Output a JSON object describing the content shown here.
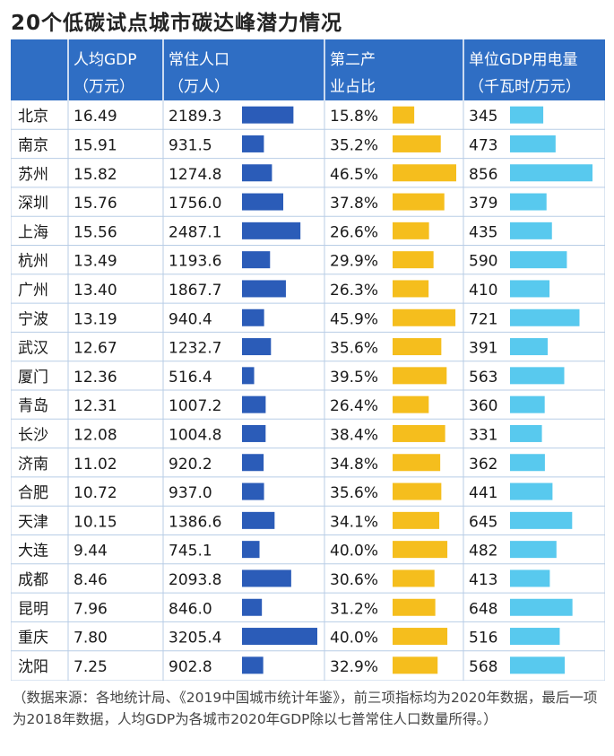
{
  "title": "20个低碳试点城市碳达峰潜力情况",
  "colors": {
    "header_bg": "#2f6ec4",
    "header_text": "#ffffff",
    "population_bar": "#2b5cb8",
    "industry_bar": "#f5be1d",
    "electricity_bar": "#58c9ee",
    "grid": "#b8cde6"
  },
  "chart_data": {
    "type": "table",
    "headers": [
      {
        "line1": "",
        "line2": ""
      },
      {
        "line1": "人均GDP",
        "line2": "（万元）"
      },
      {
        "line1": "常住人口",
        "line2": "（万人）"
      },
      {
        "line1": "第二产",
        "line2": "业占比"
      },
      {
        "line1": "单位GDP用电量",
        "line2": "（千瓦时/万元）"
      }
    ],
    "rows": [
      {
        "city": "北京",
        "gdp_per_capita": "16.49",
        "population": 2189.3,
        "population_label": "2189.3",
        "secondary_share": 15.8,
        "secondary_label": "15.8%",
        "electricity": 345,
        "electricity_label": "345"
      },
      {
        "city": "南京",
        "gdp_per_capita": "15.91",
        "population": 931.5,
        "population_label": "931.5",
        "secondary_share": 35.2,
        "secondary_label": "35.2%",
        "electricity": 473,
        "electricity_label": "473"
      },
      {
        "city": "苏州",
        "gdp_per_capita": "15.82",
        "population": 1274.8,
        "population_label": "1274.8",
        "secondary_share": 46.5,
        "secondary_label": "46.5%",
        "electricity": 856,
        "electricity_label": "856"
      },
      {
        "city": "深圳",
        "gdp_per_capita": "15.76",
        "population": 1756.0,
        "population_label": "1756.0",
        "secondary_share": 37.8,
        "secondary_label": "37.8%",
        "electricity": 379,
        "electricity_label": "379"
      },
      {
        "city": "上海",
        "gdp_per_capita": "15.56",
        "population": 2487.1,
        "population_label": "2487.1",
        "secondary_share": 26.6,
        "secondary_label": "26.6%",
        "electricity": 435,
        "electricity_label": "435"
      },
      {
        "city": "杭州",
        "gdp_per_capita": "13.49",
        "population": 1193.6,
        "population_label": "1193.6",
        "secondary_share": 29.9,
        "secondary_label": "29.9%",
        "electricity": 590,
        "electricity_label": "590"
      },
      {
        "city": "广州",
        "gdp_per_capita": "13.40",
        "population": 1867.7,
        "population_label": "1867.7",
        "secondary_share": 26.3,
        "secondary_label": "26.3%",
        "electricity": 410,
        "electricity_label": "410"
      },
      {
        "city": "宁波",
        "gdp_per_capita": "13.19",
        "population": 940.4,
        "population_label": "940.4",
        "secondary_share": 45.9,
        "secondary_label": "45.9%",
        "electricity": 721,
        "electricity_label": "721"
      },
      {
        "city": "武汉",
        "gdp_per_capita": "12.67",
        "population": 1232.7,
        "population_label": "1232.7",
        "secondary_share": 35.6,
        "secondary_label": "35.6%",
        "electricity": 391,
        "electricity_label": "391"
      },
      {
        "city": "厦门",
        "gdp_per_capita": "12.36",
        "population": 516.4,
        "population_label": "516.4",
        "secondary_share": 39.5,
        "secondary_label": "39.5%",
        "electricity": 563,
        "electricity_label": "563"
      },
      {
        "city": "青岛",
        "gdp_per_capita": "12.31",
        "population": 1007.2,
        "population_label": "1007.2",
        "secondary_share": 26.4,
        "secondary_label": "26.4%",
        "electricity": 360,
        "electricity_label": "360"
      },
      {
        "city": "长沙",
        "gdp_per_capita": "12.08",
        "population": 1004.8,
        "population_label": "1004.8",
        "secondary_share": 38.4,
        "secondary_label": "38.4%",
        "electricity": 331,
        "electricity_label": "331"
      },
      {
        "city": "济南",
        "gdp_per_capita": "11.02",
        "population": 920.2,
        "population_label": "920.2",
        "secondary_share": 34.8,
        "secondary_label": "34.8%",
        "electricity": 362,
        "electricity_label": "362"
      },
      {
        "city": "合肥",
        "gdp_per_capita": "10.72",
        "population": 937.0,
        "population_label": "937.0",
        "secondary_share": 35.6,
        "secondary_label": "35.6%",
        "electricity": 441,
        "electricity_label": "441"
      },
      {
        "city": "天津",
        "gdp_per_capita": "10.15",
        "population": 1386.6,
        "population_label": "1386.6",
        "secondary_share": 34.1,
        "secondary_label": "34.1%",
        "electricity": 645,
        "electricity_label": "645"
      },
      {
        "city": "大连",
        "gdp_per_capita": "9.44",
        "population": 745.1,
        "population_label": "745.1",
        "secondary_share": 40.0,
        "secondary_label": "40.0%",
        "electricity": 482,
        "electricity_label": "482"
      },
      {
        "city": "成都",
        "gdp_per_capita": "8.46",
        "population": 2093.8,
        "population_label": "2093.8",
        "secondary_share": 30.6,
        "secondary_label": "30.6%",
        "electricity": 413,
        "electricity_label": "413"
      },
      {
        "city": "昆明",
        "gdp_per_capita": "7.96",
        "population": 846.0,
        "population_label": "846.0",
        "secondary_share": 31.2,
        "secondary_label": "31.2%",
        "electricity": 648,
        "electricity_label": "648"
      },
      {
        "city": "重庆",
        "gdp_per_capita": "7.80",
        "population": 3205.4,
        "population_label": "3205.4",
        "secondary_share": 40.0,
        "secondary_label": "40.0%",
        "electricity": 516,
        "electricity_label": "516"
      },
      {
        "city": "沈阳",
        "gdp_per_capita": "7.25",
        "population": 902.8,
        "population_label": "902.8",
        "secondary_share": 32.9,
        "secondary_label": "32.9%",
        "electricity": 568,
        "electricity_label": "568"
      }
    ]
  },
  "footnote": "（数据来源：各地统计局、《2019中国城市统计年鉴》，前三项指标均为2020年数据，最后一项为2018年数据，人均GDP为各城市2020年GDP除以七普常住人口数量所得。）"
}
